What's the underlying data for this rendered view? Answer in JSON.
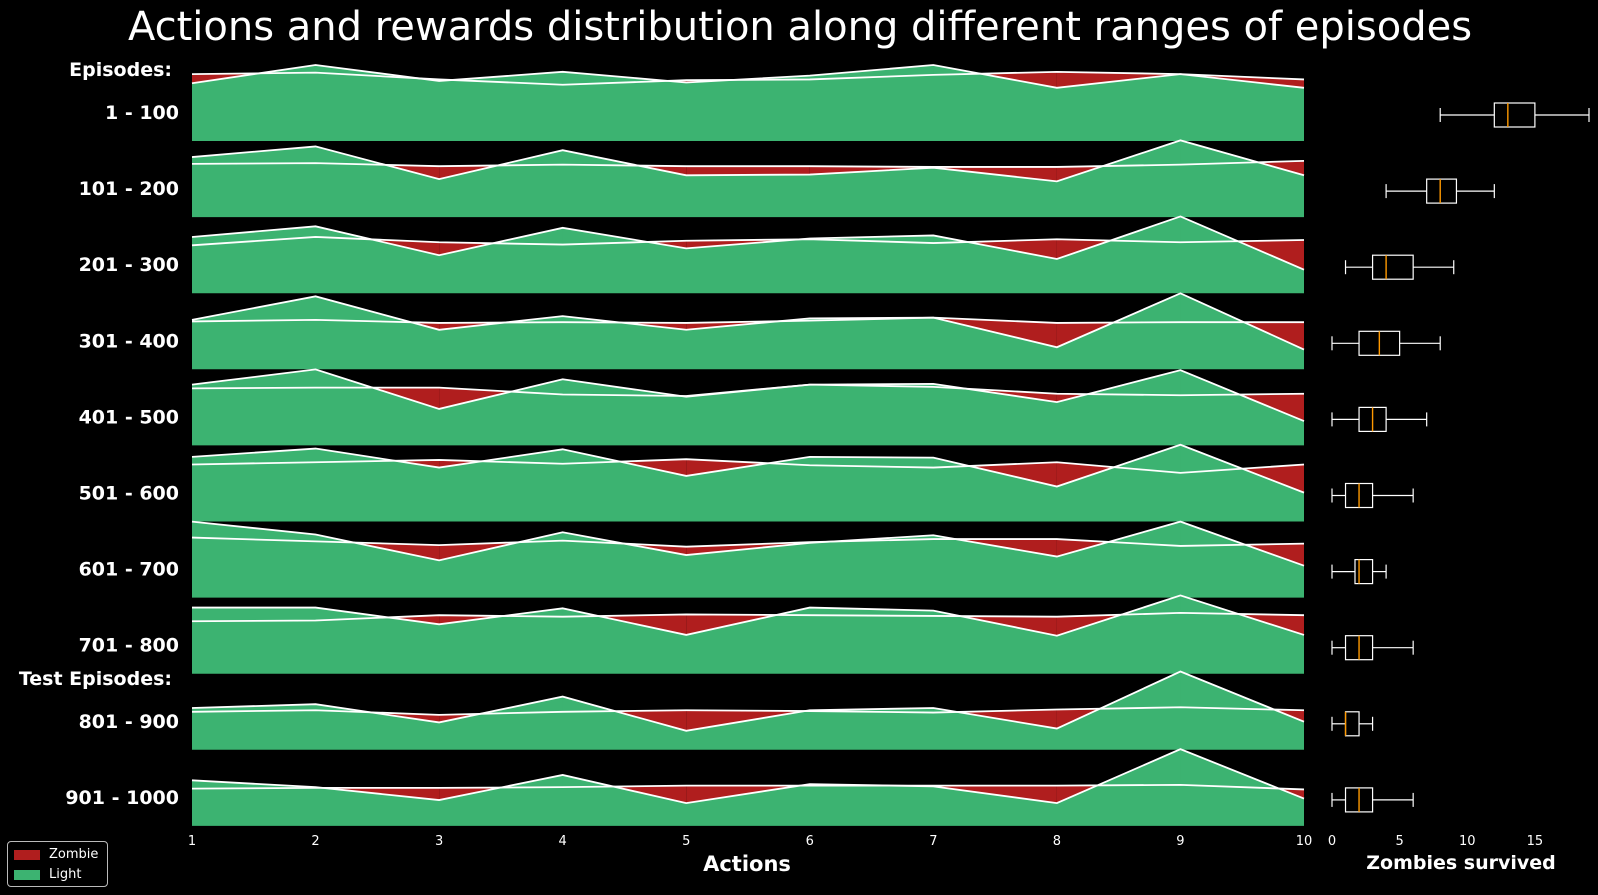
{
  "chart_data": {
    "type": "area",
    "title": "Actions and rewards distribution along different ranges of episodes",
    "xlabel": "Actions",
    "x": [
      1,
      2,
      3,
      4,
      5,
      6,
      7,
      8,
      9,
      10
    ],
    "xlim": [
      1,
      10
    ],
    "sections": [
      {
        "label": "Episodes:",
        "before_row": 0
      },
      {
        "label": "Test Episodes:",
        "before_row": 8
      }
    ],
    "colors": {
      "zombie": "#b01e1e",
      "light": "#3cb371",
      "line": "#ffffff",
      "median": "#ff9900"
    },
    "legend": {
      "position": "lower-left",
      "items": [
        {
          "key": "zombie",
          "label": "Zombie",
          "color": "#b01e1e"
        },
        {
          "key": "light",
          "label": "Light",
          "color": "#3cb371"
        }
      ]
    },
    "rows": [
      {
        "label": "1 - 100",
        "light": [
          0.76,
          1.0,
          0.79,
          0.91,
          0.77,
          0.86,
          1.0,
          0.7,
          0.88,
          0.7
        ],
        "zombie": [
          0.88,
          0.9,
          0.81,
          0.74,
          0.8,
          0.81,
          0.87,
          0.91,
          0.88,
          0.81
        ]
      },
      {
        "label": "101 - 200",
        "light": [
          0.79,
          0.93,
          0.5,
          0.88,
          0.55,
          0.56,
          0.65,
          0.47,
          1.01,
          0.55
        ],
        "zombie": [
          0.7,
          0.71,
          0.67,
          0.69,
          0.67,
          0.67,
          0.66,
          0.66,
          0.69,
          0.74
        ]
      },
      {
        "label": "201 - 300",
        "light": [
          0.74,
          0.88,
          0.5,
          0.86,
          0.59,
          0.72,
          0.76,
          0.45,
          1.01,
          0.31
        ],
        "zombie": [
          0.63,
          0.74,
          0.67,
          0.64,
          0.69,
          0.71,
          0.66,
          0.71,
          0.67,
          0.7
        ]
      },
      {
        "label": "301 - 400",
        "light": [
          0.65,
          0.96,
          0.52,
          0.7,
          0.52,
          0.67,
          0.68,
          0.29,
          1.0,
          0.26
        ],
        "zombie": [
          0.63,
          0.65,
          0.61,
          0.62,
          0.61,
          0.64,
          0.68,
          0.61,
          0.62,
          0.62
        ]
      },
      {
        "label": "401 - 500",
        "light": [
          0.8,
          1.0,
          0.48,
          0.87,
          0.64,
          0.8,
          0.81,
          0.57,
          0.99,
          0.32
        ],
        "zombie": [
          0.75,
          0.76,
          0.76,
          0.67,
          0.65,
          0.8,
          0.77,
          0.68,
          0.66,
          0.68
        ]
      },
      {
        "label": "501 - 600",
        "light": [
          0.85,
          0.96,
          0.71,
          0.95,
          0.6,
          0.85,
          0.84,
          0.46,
          1.01,
          0.38
        ],
        "zombie": [
          0.75,
          0.78,
          0.81,
          0.76,
          0.82,
          0.74,
          0.71,
          0.78,
          0.64,
          0.75
        ]
      },
      {
        "label": "601 - 700",
        "light": [
          1.0,
          0.83,
          0.49,
          0.86,
          0.56,
          0.72,
          0.82,
          0.54,
          1.0,
          0.42
        ],
        "zombie": [
          0.79,
          0.74,
          0.69,
          0.75,
          0.67,
          0.73,
          0.77,
          0.77,
          0.68,
          0.71
        ]
      },
      {
        "label": "701 - 800",
        "light": [
          0.87,
          0.87,
          0.65,
          0.86,
          0.51,
          0.87,
          0.83,
          0.5,
          1.03,
          0.51
        ],
        "zombie": [
          0.69,
          0.7,
          0.77,
          0.75,
          0.78,
          0.77,
          0.76,
          0.75,
          0.8,
          0.77
        ]
      },
      {
        "label": "801 - 900",
        "light": [
          0.55,
          0.6,
          0.36,
          0.7,
          0.25,
          0.52,
          0.55,
          0.28,
          1.03,
          0.37
        ],
        "zombie": [
          0.5,
          0.52,
          0.46,
          0.5,
          0.52,
          0.51,
          0.49,
          0.53,
          0.56,
          0.52
        ]
      },
      {
        "label": "901 - 1000",
        "light": [
          0.6,
          0.51,
          0.34,
          0.67,
          0.3,
          0.55,
          0.52,
          0.3,
          1.01,
          0.36
        ],
        "zombie": [
          0.49,
          0.5,
          0.5,
          0.51,
          0.53,
          0.53,
          0.53,
          0.53,
          0.54,
          0.48
        ]
      }
    ],
    "boxplot": {
      "xlabel": "Zombies survived",
      "xlim": [
        0,
        19
      ],
      "xticks": [
        0,
        5,
        10,
        15
      ],
      "boxes": [
        {
          "whislo": 8,
          "q1": 12,
          "med": 13,
          "q3": 15,
          "whishi": 19
        },
        {
          "whislo": 4,
          "q1": 7,
          "med": 8,
          "q3": 9.2,
          "whishi": 12
        },
        {
          "whislo": 1,
          "q1": 3,
          "med": 4,
          "q3": 6,
          "whishi": 9
        },
        {
          "whislo": 0,
          "q1": 2,
          "med": 3.5,
          "q3": 5,
          "whishi": 8
        },
        {
          "whislo": 0,
          "q1": 2,
          "med": 3,
          "q3": 4,
          "whishi": 7
        },
        {
          "whislo": 0,
          "q1": 1,
          "med": 2,
          "q3": 3,
          "whishi": 6
        },
        {
          "whislo": 0,
          "q1": 1.7,
          "med": 2,
          "q3": 3,
          "whishi": 4
        },
        {
          "whislo": 0,
          "q1": 1,
          "med": 2,
          "q3": 3,
          "whishi": 6
        },
        {
          "whislo": 0,
          "q1": 1,
          "med": 1,
          "q3": 2,
          "whishi": 3
        },
        {
          "whislo": 0,
          "q1": 1,
          "med": 2,
          "q3": 3,
          "whishi": 6
        }
      ]
    }
  }
}
